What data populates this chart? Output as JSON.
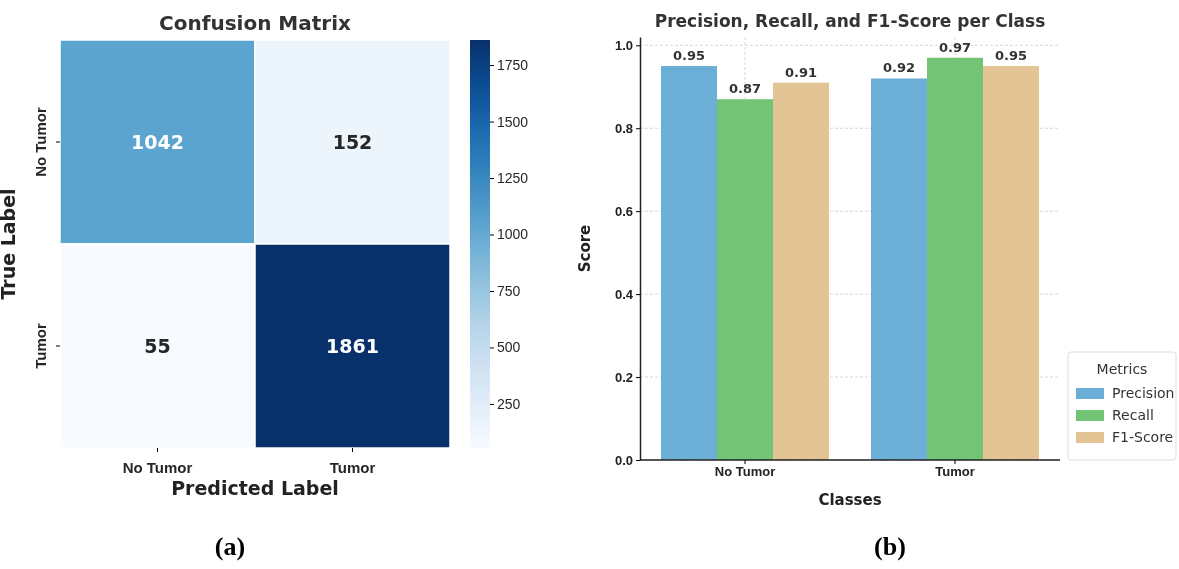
{
  "chart_data": [
    {
      "type": "heatmap",
      "title": "Confusion Matrix",
      "xlabel": "Predicted Label",
      "ylabel": "True Label",
      "categories": [
        "No Tumor",
        "Tumor"
      ],
      "y_categories": [
        "No Tumor",
        "Tumor"
      ],
      "cells": [
        [
          1042,
          152
        ],
        [
          55,
          1861
        ]
      ],
      "clim": [
        55,
        1861
      ],
      "cticks": [
        250,
        500,
        750,
        1000,
        1250,
        1500,
        1750
      ],
      "data_labels": true,
      "annotations": [
        "(a)"
      ]
    },
    {
      "type": "bar",
      "title": "Precision, Recall, and F1-Score per Class",
      "xlabel": "Classes",
      "ylabel": "Score",
      "categories": [
        "No Tumor",
        "Tumor"
      ],
      "series": [
        {
          "name": "Precision",
          "color": "#6baed6",
          "values": [
            0.95,
            0.92
          ]
        },
        {
          "name": "Recall",
          "color": "#74c476",
          "values": [
            0.87,
            0.97
          ]
        },
        {
          "name": "F1-Score",
          "color": "#e3c494",
          "values": [
            0.91,
            0.95
          ]
        }
      ],
      "ylim": [
        0,
        1.02
      ],
      "yticks": [
        {
          "value": 0,
          "label": "0.0"
        },
        0.2,
        0.4,
        0.6,
        0.8,
        {
          "value": 1,
          "label": "1.0"
        }
      ],
      "grid": true,
      "legend": "right",
      "legend_title": "Metrics",
      "data_labels": true,
      "annotations": [
        "(b)"
      ]
    }
  ]
}
